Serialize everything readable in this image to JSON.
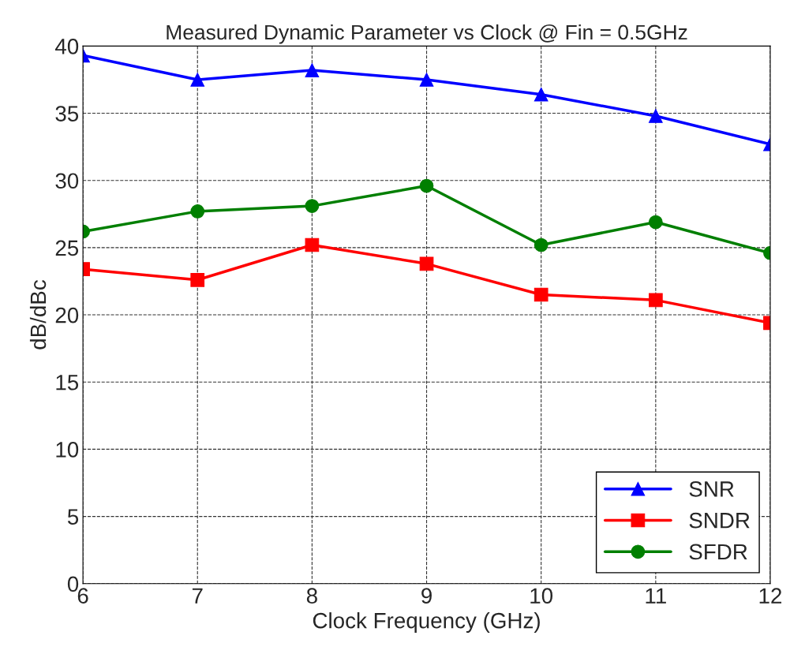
{
  "chart_data": {
    "type": "line",
    "title": "Measured Dynamic Parameter vs Clock @ Fin = 0.5GHz",
    "xlabel": "Clock Frequency (GHz)",
    "ylabel": "dB/dBc",
    "x": [
      6,
      7,
      8,
      9,
      10,
      11,
      12
    ],
    "series": [
      {
        "name": "SNR",
        "color": "#0000ff",
        "marker": "triangle",
        "values": [
          39.3,
          37.5,
          38.2,
          37.5,
          36.4,
          34.8,
          32.7
        ]
      },
      {
        "name": "SNDR",
        "color": "#ff0000",
        "marker": "square",
        "values": [
          23.4,
          22.6,
          25.2,
          23.8,
          21.5,
          21.1,
          19.4
        ]
      },
      {
        "name": "SFDR",
        "color": "#007f00",
        "marker": "circle",
        "values": [
          26.2,
          27.7,
          28.1,
          29.6,
          25.2,
          26.9,
          24.6
        ]
      }
    ],
    "xlim": [
      6,
      12
    ],
    "xticks": [
      6,
      7,
      8,
      9,
      10,
      11,
      12
    ],
    "ylim": [
      0,
      40
    ],
    "yticks": [
      0,
      5,
      10,
      15,
      20,
      25,
      30,
      35,
      40
    ],
    "grid": true,
    "legend": "bottom right",
    "line_style": "solid"
  }
}
